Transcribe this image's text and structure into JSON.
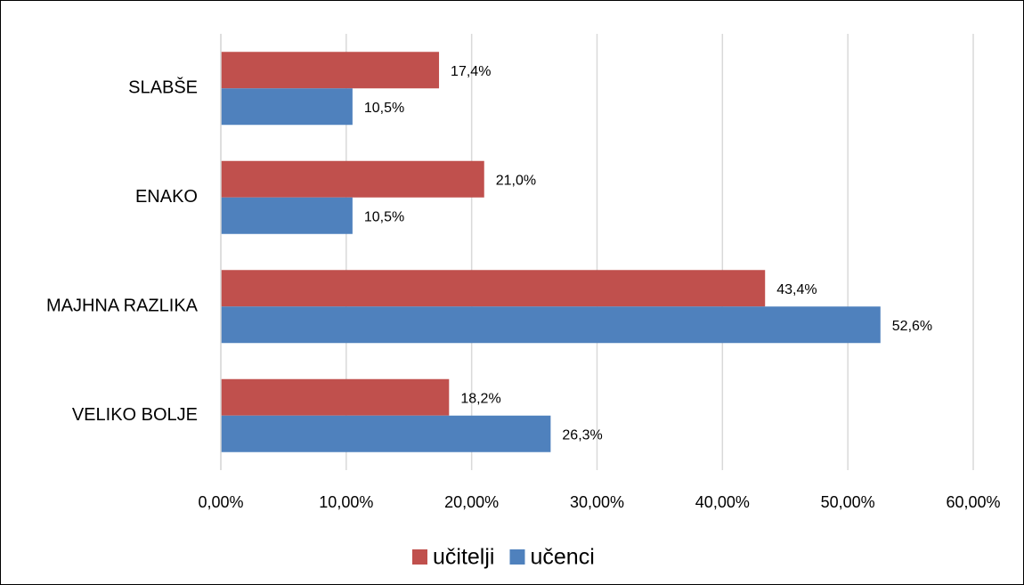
{
  "chart_data": {
    "type": "hbar",
    "categories": [
      "SLABŠE",
      "ENAKO",
      "MAJHNA RAZLIKA",
      "VELIKO BOLJE"
    ],
    "series": [
      {
        "name": "učitelji",
        "color": "#c0504d",
        "values": [
          17.4,
          21.0,
          43.4,
          18.2
        ],
        "value_labels": [
          "17,4%",
          "21,0%",
          "43,4%",
          "18,2%"
        ]
      },
      {
        "name": "učenci",
        "color": "#4f81bd",
        "values": [
          10.5,
          10.5,
          52.6,
          26.3
        ],
        "value_labels": [
          "10,5%",
          "10,5%",
          "52,6%",
          "26,3%"
        ]
      }
    ],
    "xlim": [
      0,
      60
    ],
    "xticks": [
      {
        "value": 0,
        "label": "0,00%"
      },
      {
        "value": 10,
        "label": "10,00%"
      },
      {
        "value": 20,
        "label": "20,00%"
      },
      {
        "value": 30,
        "label": "30,00%"
      },
      {
        "value": 40,
        "label": "40,00%"
      },
      {
        "value": 50,
        "label": "50,00%"
      },
      {
        "value": 60,
        "label": "60,00%"
      }
    ],
    "grid": true,
    "legend": "bottom"
  }
}
